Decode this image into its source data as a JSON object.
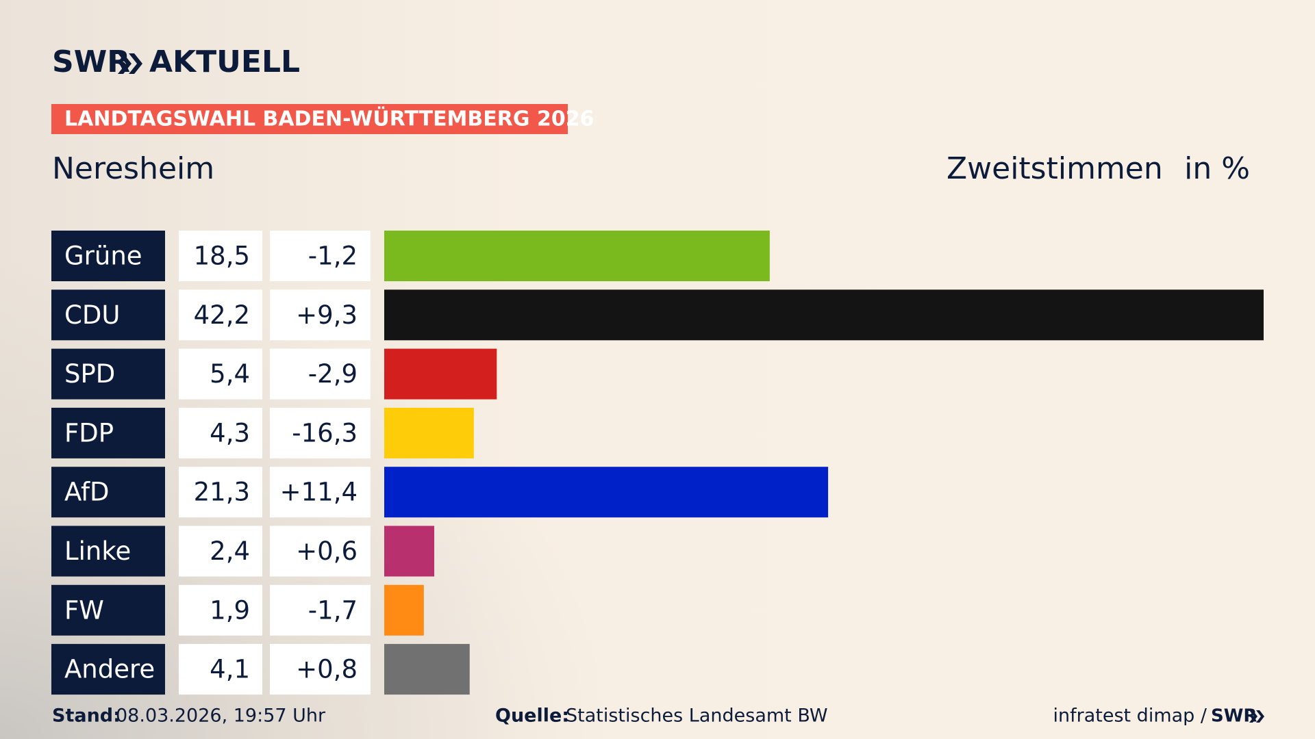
{
  "header": {
    "logo": "SWR",
    "logo_suffix": "AKTUELL",
    "banner": "LANDTAGSWAHL BADEN-WÜRTTEMBERG 2026"
  },
  "chart_data": {
    "type": "bar",
    "title": "Neresheim",
    "value_heading": "Zweitstimmen",
    "unit_heading": "in %",
    "categories": [
      "Grüne",
      "CDU",
      "SPD",
      "FDP",
      "AfD",
      "Linke",
      "FW",
      "Andere"
    ],
    "values": [
      18.5,
      42.2,
      5.4,
      4.3,
      21.3,
      2.4,
      1.9,
      4.1
    ],
    "value_labels": [
      "18,5",
      "42,2",
      "5,4",
      "4,3",
      "21,3",
      "2,4",
      "1,9",
      "4,1"
    ],
    "changes": [
      -1.2,
      9.3,
      -2.9,
      -16.3,
      11.4,
      0.6,
      -1.7,
      0.8
    ],
    "change_labels": [
      "-1,2",
      "+9,3",
      "-2,9",
      "-16,3",
      "+11,4",
      "+0,6",
      "-1,7",
      "+0,8"
    ],
    "colors": [
      "#7aba1f",
      "#141414",
      "#d41f1f",
      "#ffcc0a",
      "#0020c8",
      "#b9306f",
      "#ff8a14",
      "#717171"
    ]
  },
  "footer": {
    "stand_label": "Stand:",
    "stand": "08.03.2026, 19:57 Uhr",
    "source_label": "Quelle:",
    "source": "Statistisches Landesamt BW",
    "credit": "infratest dimap /",
    "credit_logo": "SWR"
  }
}
